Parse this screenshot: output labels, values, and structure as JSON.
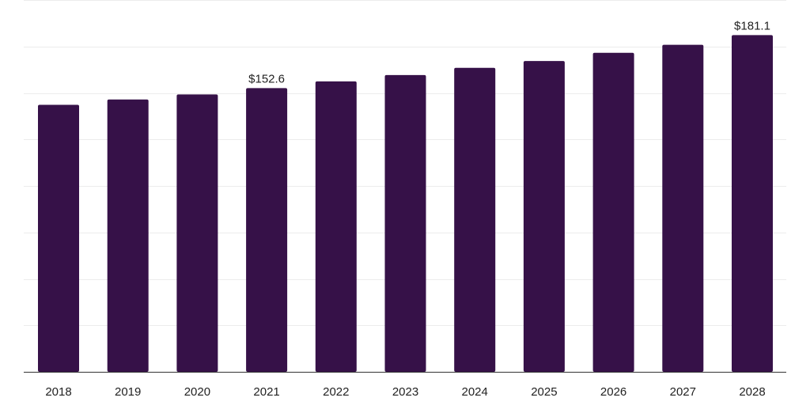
{
  "chart_data": {
    "type": "bar",
    "categories": [
      "2018",
      "2019",
      "2020",
      "2021",
      "2022",
      "2023",
      "2024",
      "2025",
      "2026",
      "2027",
      "2028"
    ],
    "values": [
      143.6,
      146.5,
      149.2,
      152.6,
      156.2,
      159.6,
      163.5,
      167.2,
      171.6,
      175.9,
      181.1
    ],
    "data_labels": [
      {
        "category": "2021",
        "text": "$152.6"
      },
      {
        "category": "2028",
        "text": "$181.1"
      }
    ],
    "ylim": [
      0,
      200
    ],
    "grid": true,
    "legend": "none",
    "colors": {
      "bar": "#361148",
      "grid": "#ececec",
      "axis": "#333333"
    }
  }
}
